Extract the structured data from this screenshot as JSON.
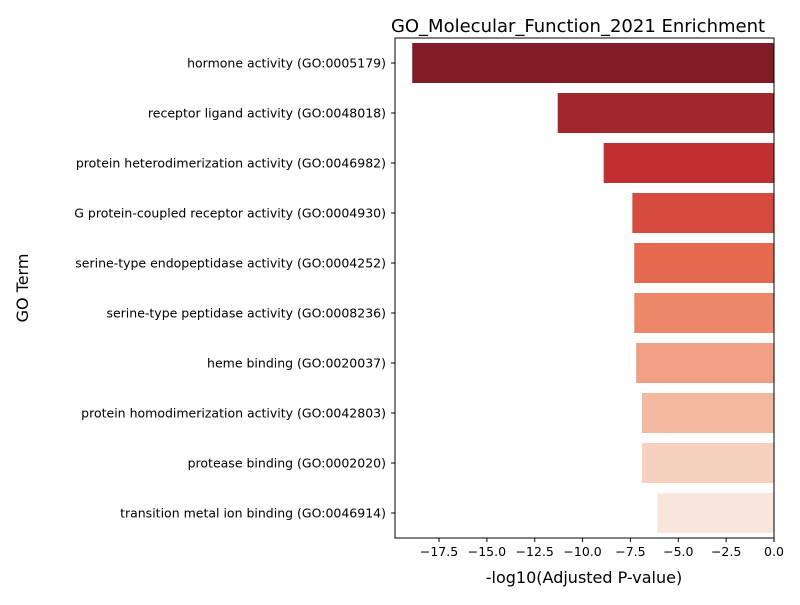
{
  "chart_data": {
    "type": "bar",
    "orientation": "horizontal",
    "title": "GO_Molecular_Function_2021 Enrichment",
    "xlabel": "-log10(Adjusted P-value)",
    "ylabel": "GO Term",
    "xlim": [
      -19.8,
      0
    ],
    "xticks": [
      -17.5,
      -15.0,
      -12.5,
      -10.0,
      -7.5,
      -5.0,
      -2.5,
      0.0
    ],
    "xtick_labels": [
      "−17.5",
      "−15.0",
      "−12.5",
      "−10.0",
      "−7.5",
      "−5.0",
      "−2.5",
      "0.0"
    ],
    "grid": false,
    "legend": "none",
    "categories": [
      "hormone activity (GO:0005179)",
      "receptor ligand activity (GO:0048018)",
      "protein heterodimerization activity (GO:0046982)",
      "G protein-coupled receptor activity (GO:0004930)",
      "serine-type endopeptidase activity (GO:0004252)",
      "serine-type peptidase activity (GO:0008236)",
      "heme binding (GO:0020037)",
      "protein homodimerization activity (GO:0042803)",
      "protease binding (GO:0002020)",
      "transition metal ion binding (GO:0046914)"
    ],
    "values": [
      -18.9,
      -11.3,
      -8.9,
      -7.4,
      -7.3,
      -7.3,
      -7.2,
      -6.9,
      -6.9,
      -6.1
    ],
    "colors": [
      "#7f1c25",
      "#a2272c",
      "#c22f30",
      "#d74b3e",
      "#e4694e",
      "#ec8769",
      "#f0a084",
      "#f3b8a0",
      "#f6d1c0",
      "#f8e5dc"
    ]
  }
}
